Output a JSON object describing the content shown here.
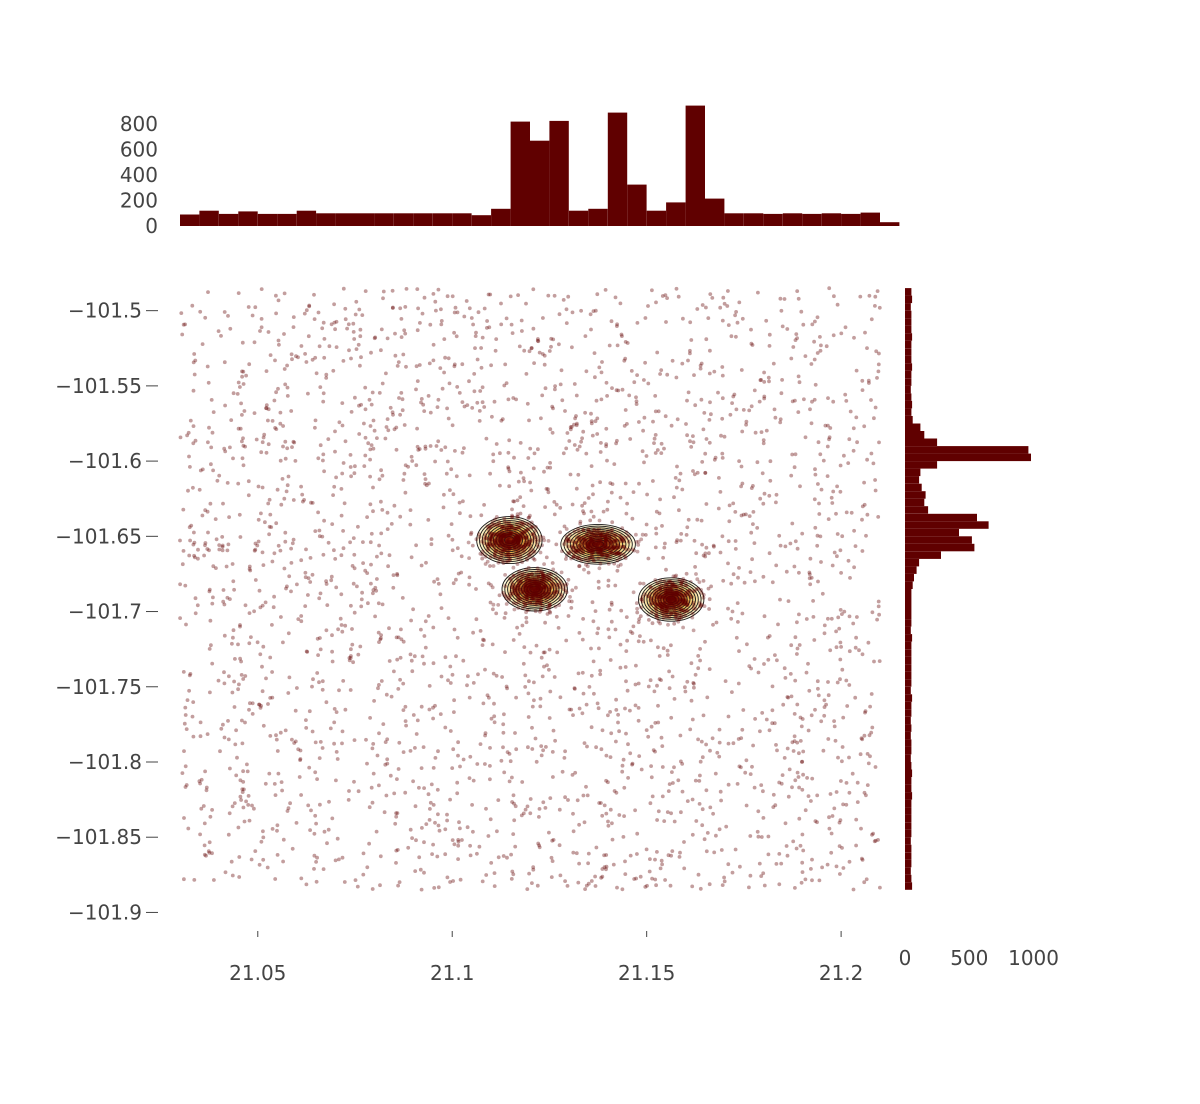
{
  "chart_data": {
    "type": "scatter",
    "title": "",
    "xlabel": "",
    "ylabel": "",
    "colors": {
      "marker": "#600000",
      "contour_line": "#1a1a1a",
      "contour_fill_low": "#fff4c2",
      "contour_fill_high": "#8b1a00",
      "tick_text": "#444444"
    },
    "main": {
      "xlim": [
        21.03,
        21.21
      ],
      "ylim": [
        -101.915,
        -101.465
      ],
      "x_ticks": [
        {
          "value": 21.05,
          "label": "21.05"
        },
        {
          "value": 21.1,
          "label": "21.1"
        },
        {
          "value": 21.15,
          "label": "21.15"
        },
        {
          "value": 21.2,
          "label": "21.2"
        }
      ],
      "y_ticks": [
        {
          "value": -101.5,
          "label": "−101.5"
        },
        {
          "value": -101.55,
          "label": "−101.55"
        },
        {
          "value": -101.6,
          "label": "−101.6"
        },
        {
          "value": -101.65,
          "label": "−101.65"
        },
        {
          "value": -101.7,
          "label": "−101.7"
        },
        {
          "value": -101.75,
          "label": "−101.75"
        },
        {
          "value": -101.8,
          "label": "−101.8"
        },
        {
          "value": -101.85,
          "label": "−101.85"
        },
        {
          "value": -101.9,
          "label": "−101.9"
        }
      ],
      "scatter_background": {
        "count": 2600,
        "x_range": [
          21.03,
          21.21
        ],
        "y_range": [
          -101.885,
          -101.485
        ]
      },
      "clusters": [
        {
          "x": 21.1147,
          "y": -101.6525,
          "sx": 0.0035,
          "sy": 0.0065,
          "count": 420
        },
        {
          "x": 21.1375,
          "y": -101.6553,
          "sx": 0.004,
          "sy": 0.0055,
          "count": 380
        },
        {
          "x": 21.1212,
          "y": -101.6852,
          "sx": 0.0035,
          "sy": 0.006,
          "count": 420
        },
        {
          "x": 21.1563,
          "y": -101.692,
          "sx": 0.0035,
          "sy": 0.006,
          "count": 380
        }
      ]
    },
    "x_histogram": {
      "bin_start": 21.03,
      "bin_width": 0.005,
      "counts": [
        90,
        120,
        95,
        115,
        95,
        95,
        120,
        100,
        100,
        100,
        100,
        100,
        100,
        100,
        100,
        85,
        135,
        820,
        670,
        825,
        120,
        135,
        890,
        325,
        120,
        185,
        945,
        215,
        100,
        100,
        95,
        100,
        95,
        100,
        95,
        105,
        30
      ],
      "yticks": [
        {
          "value": 0,
          "label": "0"
        },
        {
          "value": 200,
          "label": "200"
        },
        {
          "value": 400,
          "label": "400"
        },
        {
          "value": 600,
          "label": "600"
        },
        {
          "value": 800,
          "label": "800"
        }
      ],
      "ymax": 950
    },
    "y_histogram": {
      "bin_start": -101.885,
      "bin_width": 0.005,
      "counts": [
        55,
        50,
        45,
        50,
        50,
        50,
        45,
        50,
        50,
        50,
        50,
        50,
        55,
        50,
        50,
        55,
        50,
        45,
        50,
        50,
        45,
        50,
        45,
        50,
        50,
        55,
        45,
        50,
        50,
        50,
        50,
        50,
        50,
        55,
        45,
        50,
        50,
        50,
        50,
        50,
        60,
        70,
        90,
        110,
        280,
        540,
        520,
        420,
        650,
        560,
        180,
        150,
        160,
        130,
        110,
        120,
        250,
        980,
        960,
        250,
        150,
        120,
        60,
        50,
        55,
        50,
        45,
        50,
        50,
        55,
        50,
        50,
        50,
        55,
        50,
        50,
        50,
        45,
        55,
        50
      ],
      "xticks": [
        {
          "value": 0,
          "label": "0"
        },
        {
          "value": 500,
          "label": "500"
        },
        {
          "value": 1000,
          "label": "1000"
        }
      ],
      "xmax": 1050
    }
  }
}
